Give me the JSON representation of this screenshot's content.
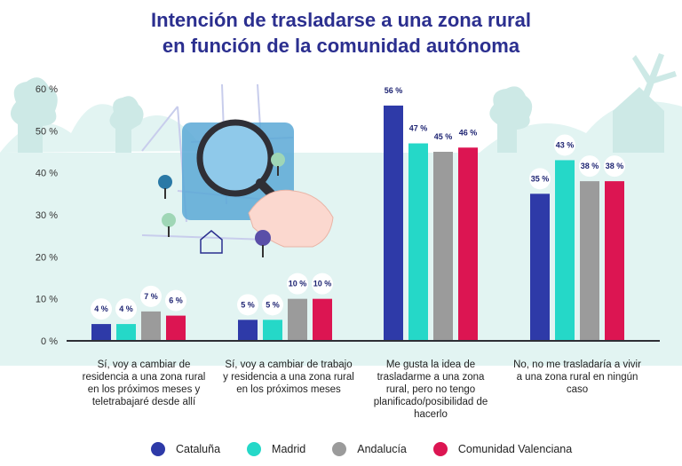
{
  "title_lines": [
    "Intención de trasladarse a una zona rural",
    "en función de la comunidad autónoma"
  ],
  "colors": {
    "Cataluña": "#2e3aa8",
    "Madrid": "#25d8c8",
    "Andalucía": "#9b9b9b",
    "Comunidad Valenciana": "#dc1552",
    "background": "#e2f4f2",
    "title": "#2b2f8f"
  },
  "icons": [
    "magnifier-map-illustration",
    "tree-icon",
    "house-icon",
    "windmill-icon"
  ],
  "chart_data": {
    "type": "bar",
    "title": "Intención de trasladarse a una zona rural en función de la comunidad autónoma",
    "ylim": [
      0,
      60
    ],
    "yticks": [
      "0 %",
      "10 %",
      "20 %",
      "30 %",
      "40 %",
      "50 %",
      "60 %"
    ],
    "ytick_values": [
      0,
      10,
      20,
      30,
      40,
      50,
      60
    ],
    "grid": false,
    "legend_position": "bottom",
    "categories": [
      "Sí, voy a cambiar de residencia a una zona rural en los próximos meses y teletrabajaré desde allí",
      "Sí, voy a cambiar de trabajo y residencia a una zona rural en los próximos meses",
      "Me gusta la idea de trasladarme a una zona rural, pero no tengo planificado/posibilidad de hacerlo",
      "No, no me trasladaría a vivir a una zona rural en ningún caso"
    ],
    "series": [
      {
        "name": "Cataluña",
        "values": [
          4,
          5,
          56,
          35
        ],
        "labels": [
          "4 %",
          "5 %",
          "56 %",
          "35 %"
        ]
      },
      {
        "name": "Madrid",
        "values": [
          4,
          5,
          47,
          43
        ],
        "labels": [
          "4 %",
          "5 %",
          "47 %",
          "43 %"
        ]
      },
      {
        "name": "Andalucía",
        "values": [
          7,
          10,
          45,
          38
        ],
        "labels": [
          "7 %",
          "10 %",
          "45 %",
          "38 %"
        ]
      },
      {
        "name": "Comunidad Valenciana",
        "values": [
          6,
          10,
          46,
          38
        ],
        "labels": [
          "6 %",
          "10 %",
          "46 %",
          "38 %"
        ]
      }
    ]
  }
}
